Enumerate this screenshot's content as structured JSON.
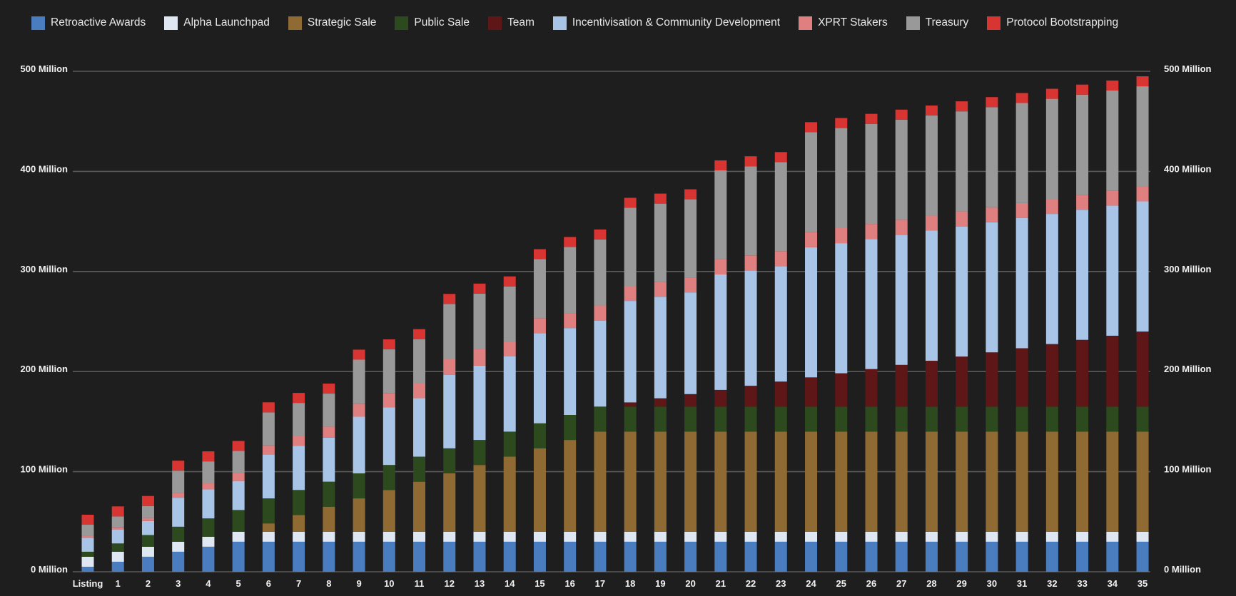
{
  "chart_data": {
    "type": "bar",
    "stacked": true,
    "title": "",
    "xlabel": "",
    "ylabel": "",
    "ylim": [
      0,
      500
    ],
    "y_ticks": [
      {
        "value": 0,
        "label": "0 Million"
      },
      {
        "value": 100,
        "label": "100 Million"
      },
      {
        "value": 200,
        "label": "200 Million"
      },
      {
        "value": 300,
        "label": "300 Million"
      },
      {
        "value": 400,
        "label": "400 Million"
      },
      {
        "value": 500,
        "label": "500 Million"
      }
    ],
    "legend_position": "top",
    "categories": [
      "Listing",
      "1",
      "2",
      "3",
      "4",
      "5",
      "6",
      "7",
      "8",
      "9",
      "10",
      "11",
      "12",
      "13",
      "14",
      "15",
      "16",
      "17",
      "18",
      "19",
      "20",
      "21",
      "22",
      "23",
      "24",
      "25",
      "26",
      "27",
      "28",
      "29",
      "30",
      "31",
      "32",
      "33",
      "34",
      "35"
    ],
    "series": [
      {
        "name": "Retroactive Awards",
        "color": "#4a7cc0",
        "values": [
          5,
          10,
          15,
          20,
          25,
          30,
          30,
          30,
          30,
          30,
          30,
          30,
          30,
          30,
          30,
          30,
          30,
          30,
          30,
          30,
          30,
          30,
          30,
          30,
          30,
          30,
          30,
          30,
          30,
          30,
          30,
          30,
          30,
          30,
          30,
          30
        ]
      },
      {
        "name": "Alpha Launchpad",
        "color": "#dfe7f3",
        "values": [
          10,
          10,
          10,
          10,
          10,
          10,
          10,
          10,
          10,
          10,
          10,
          10,
          10,
          10,
          10,
          10,
          10,
          10,
          10,
          10,
          10,
          10,
          10,
          10,
          10,
          10,
          10,
          10,
          10,
          10,
          10,
          10,
          10,
          10,
          10,
          10
        ]
      },
      {
        "name": "Strategic Sale",
        "color": "#8f6a33",
        "values": [
          0,
          0,
          0,
          0,
          0,
          0,
          8.3,
          16.7,
          25,
          33.3,
          41.7,
          50,
          58.3,
          66.7,
          75,
          83.3,
          91.7,
          100,
          100,
          100,
          100,
          100,
          100,
          100,
          100,
          100,
          100,
          100,
          100,
          100,
          100,
          100,
          100,
          100,
          100,
          100
        ]
      },
      {
        "name": "Public Sale",
        "color": "#2d4a1f",
        "values": [
          5,
          8.3,
          11.7,
          15,
          18.3,
          21.7,
          25,
          25,
          25,
          25,
          25,
          25,
          25,
          25,
          25,
          25,
          25,
          25,
          25,
          25,
          25,
          25,
          25,
          25,
          25,
          25,
          25,
          25,
          25,
          25,
          25,
          25,
          25,
          25,
          25,
          25
        ]
      },
      {
        "name": "Team",
        "color": "#5e1716",
        "values": [
          0,
          0,
          0,
          0,
          0,
          0,
          0,
          0,
          0,
          0,
          0,
          0,
          0,
          0,
          0,
          0,
          0,
          0,
          4.2,
          8.3,
          12.5,
          16.7,
          20.8,
          25,
          29.2,
          33.3,
          37.5,
          41.7,
          45.8,
          50,
          54.2,
          58.3,
          62.5,
          66.7,
          70.8,
          75
        ]
      },
      {
        "name": "Incentivisation & Community Development",
        "color": "#a8c4e6",
        "values": [
          14,
          14,
          14,
          29,
          29,
          29,
          44,
          44,
          44,
          56.6,
          57.5,
          58.4,
          73.3,
          74.2,
          75.1,
          90,
          86.8,
          86,
          101.4,
          101.5,
          101.6,
          115.3,
          115.3,
          115.3,
          130,
          130,
          130,
          130,
          130,
          130,
          130,
          130,
          130,
          130,
          130,
          130
        ]
      },
      {
        "name": "XPRT Stakers",
        "color": "#e07f7f",
        "values": [
          2,
          2,
          3,
          5,
          6,
          8,
          9,
          10,
          11,
          13,
          14,
          15,
          16,
          17,
          15,
          15,
          15,
          15,
          15,
          15,
          15,
          15,
          15,
          15,
          15,
          15,
          15,
          15,
          15,
          15,
          15,
          15,
          15,
          15,
          15,
          15
        ]
      },
      {
        "name": "Treasury",
        "color": "#999999",
        "values": [
          11,
          11,
          12,
          22,
          22,
          22,
          33,
          33,
          33,
          44,
          44,
          44,
          55,
          55,
          55,
          59,
          66,
          66,
          78,
          78,
          78,
          89,
          89,
          89,
          100,
          100,
          100,
          100,
          100,
          100,
          100,
          100,
          100,
          100,
          100,
          100
        ]
      },
      {
        "name": "Protocol Bootstrapping",
        "color": "#d73432",
        "values": [
          10,
          10,
          10,
          10,
          10,
          10,
          10,
          10,
          10,
          10,
          10,
          10,
          10,
          10,
          10,
          10,
          10,
          10,
          10,
          10,
          10,
          10,
          10,
          10,
          10,
          10,
          10,
          10,
          10,
          10,
          10,
          10,
          10,
          10,
          10,
          10
        ]
      }
    ]
  }
}
